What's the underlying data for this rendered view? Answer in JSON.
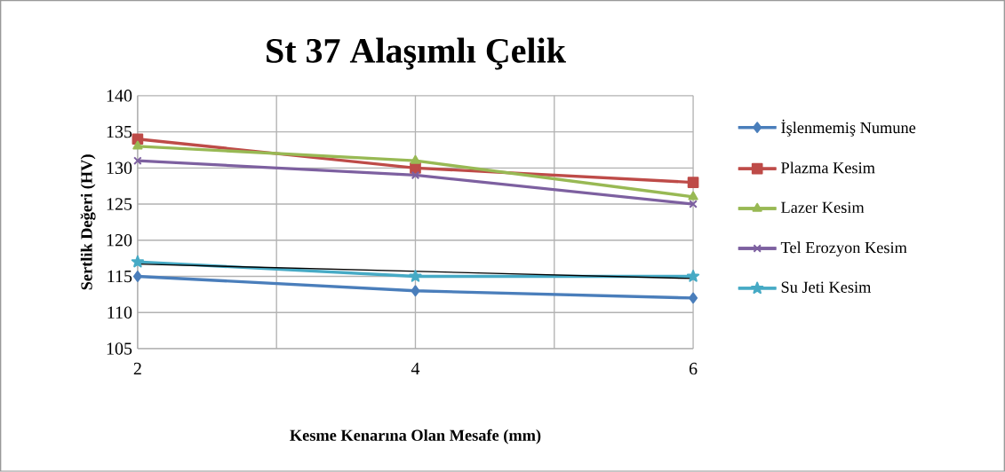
{
  "chart_data": {
    "type": "line",
    "title": "St 37 Alaşımlı Çelik",
    "xlabel": "Kesme Kenarına Olan Mesafe (mm)",
    "ylabel": "Sertlik Değeri (HV)",
    "x": [
      2,
      4,
      6
    ],
    "series": [
      {
        "name": "İşlenmemiş Numune",
        "color": "#4a7ebb",
        "marker": "diamond",
        "values": [
          115,
          113,
          112
        ]
      },
      {
        "name": "Plazma Kesim",
        "color": "#be4b48",
        "marker": "square",
        "values": [
          134,
          130,
          128
        ]
      },
      {
        "name": "Lazer Kesim",
        "color": "#98b954",
        "marker": "triangle",
        "values": [
          133,
          131,
          126
        ]
      },
      {
        "name": "Tel Erozyon Kesim",
        "color": "#7d60a0",
        "marker": "cross",
        "values": [
          131,
          129,
          125
        ]
      },
      {
        "name": "Su Jeti Kesim",
        "color": "#46aac5",
        "marker": "star",
        "values": [
          117,
          115,
          115
        ]
      },
      {
        "type": "line",
        "color": "#000000",
        "marker": "none",
        "x": [
          2,
          6
        ],
        "values": [
          116.7,
          114.7
        ]
      }
    ],
    "xlim": [
      2,
      6
    ],
    "xticks": [
      2,
      {
        "value": 3,
        "label": null
      },
      4,
      {
        "value": 5,
        "label": null
      },
      6
    ],
    "ylim": [
      105,
      140
    ],
    "yticks": [
      105,
      110,
      115,
      120,
      125,
      130,
      135,
      140
    ],
    "grid": true,
    "legend": "right"
  }
}
